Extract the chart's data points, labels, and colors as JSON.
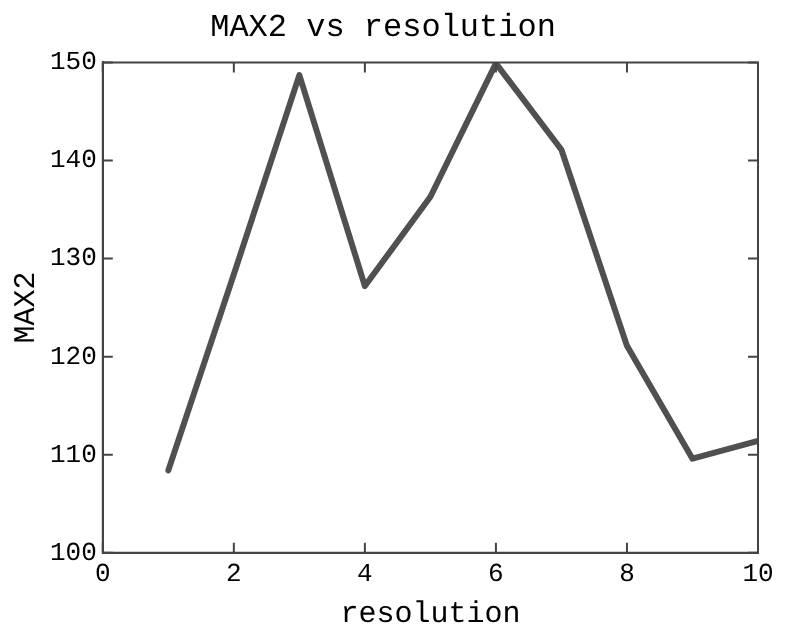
{
  "chart_data": {
    "type": "line",
    "title": "MAX2 vs resolution",
    "xlabel": "resolution",
    "ylabel": "MAX2",
    "x": [
      1,
      2,
      3,
      4,
      5,
      6,
      7,
      8,
      9,
      10
    ],
    "series": [
      {
        "color": "#505050",
        "values": [
          108.4,
          128.4,
          148.7,
          127.2,
          136.3,
          149.9,
          141.1,
          121.1,
          109.6,
          111.4
        ]
      }
    ],
    "xlim": [
      0,
      10
    ],
    "xticks": [
      0,
      2,
      4,
      6,
      8,
      10
    ],
    "ylim": [
      100,
      150
    ],
    "yticks": [
      100,
      110,
      120,
      130,
      140,
      150
    ],
    "grid": false,
    "legend": false,
    "marker": "none",
    "line_style": "solid"
  }
}
